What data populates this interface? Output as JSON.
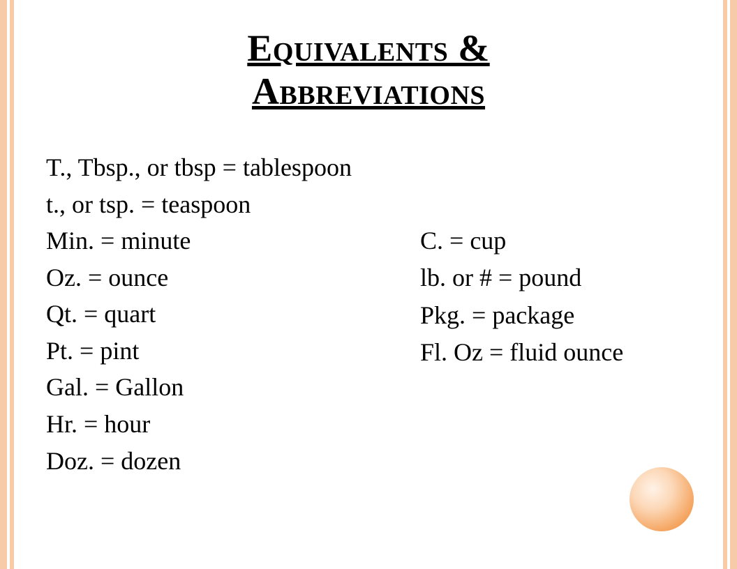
{
  "colors": {
    "stripe": "#f7cba8",
    "background": "#ffffff",
    "text": "#000000",
    "circle_gradient_start": "#fff2e7",
    "circle_gradient_end": "#e78b3f"
  },
  "typography": {
    "title_fontsize": 54,
    "body_fontsize": 36,
    "font_family": "Century Schoolbook"
  },
  "title": {
    "line1": "Equivalents &",
    "line2": "Abbreviations"
  },
  "left_column": [
    "T., Tbsp., or tbsp = tablespoon",
    "t., or tsp. = teaspoon",
    "Min. = minute",
    "Oz. = ounce",
    "Qt. = quart",
    "Pt. = pint",
    "Gal. = Gallon",
    "Hr. = hour",
    "Doz. = dozen"
  ],
  "right_column": [
    "C. = cup",
    "lb. or # = pound",
    "Pkg. = package",
    "Fl. Oz = fluid ounce"
  ]
}
